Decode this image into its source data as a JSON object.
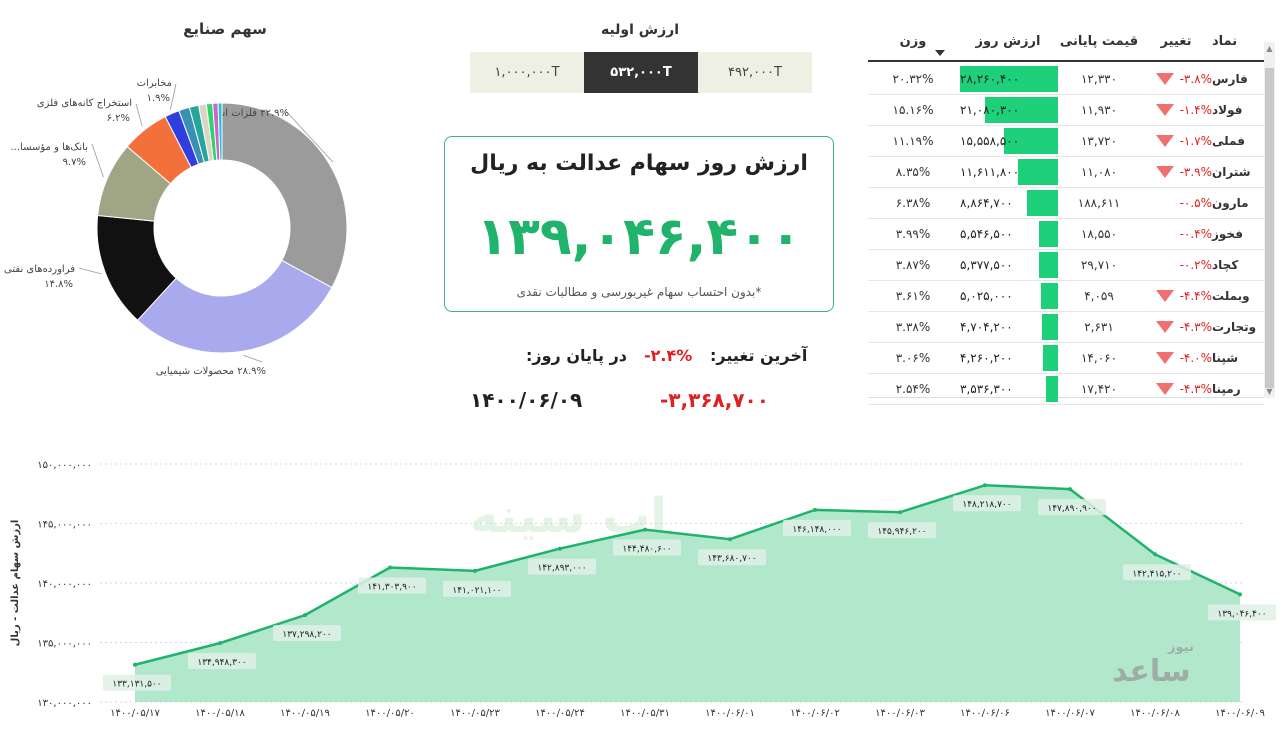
{
  "sectors": {
    "title": "سهم صنایع",
    "chart_data": {
      "type": "pie",
      "slices": [
        {
          "label": "فلزات اساسی",
          "pct_text": "۳۲.۹%",
          "value": 32.9,
          "color": "#9b9b9b"
        },
        {
          "label": "محصولات شیمیایی",
          "pct_text": "۲۸.۹%",
          "value": 28.9,
          "color": "#a9a9ee"
        },
        {
          "label": "فراورده‌های نفتی",
          "pct_text": "۱۴.۸%",
          "value": 14.8,
          "color": "#111111"
        },
        {
          "label": "...بانک‌ها و مؤسسا",
          "pct_text": "۹.۷%",
          "value": 9.7,
          "color": "#a0a585"
        },
        {
          "label": "استخراج کانه‌های فلزی",
          "pct_text": "۶.۲%",
          "value": 6.2,
          "color": "#f4703a"
        },
        {
          "label": "مخابرات",
          "pct_text": "۱.۹%",
          "value": 1.9,
          "color": "#2f3fdd"
        },
        {
          "label": "",
          "pct_text": "",
          "value": 1.4,
          "color": "#3a8fb5"
        },
        {
          "label": "",
          "pct_text": "",
          "value": 1.2,
          "color": "#26a69a"
        },
        {
          "label": "",
          "pct_text": "",
          "value": 1.0,
          "color": "#d9d6c3"
        },
        {
          "label": "",
          "pct_text": "",
          "value": 0.8,
          "color": "#2ed36c"
        },
        {
          "label": "",
          "pct_text": "",
          "value": 0.7,
          "color": "#cc66cc"
        },
        {
          "label": "",
          "pct_text": "",
          "value": 0.5,
          "color": "#23bfe0"
        }
      ]
    }
  },
  "initial_value": {
    "title": "ارزش اولیه",
    "options": [
      "۱,۰۰۰,۰۰۰T",
      "۵۳۲,۰۰۰T",
      "۴۹۲,۰۰۰T"
    ],
    "selected_index": 1
  },
  "card": {
    "title": "ارزش روز سهام عدالت به ریال",
    "value": "۱۳۹,۰۴۶,۴۰۰",
    "note": "*بدون احتساب سهام غیربورسی و مطالبات نقدی"
  },
  "last_change": {
    "label": "آخرین تغییر:",
    "pct": "-۲.۴%",
    "eod_label": "در پایان روز:",
    "amount": "-۳,۳۶۸,۷۰۰",
    "date": "۱۴۰۰/۰۶/۰۹"
  },
  "table": {
    "headers": {
      "symbol": "نماد",
      "change": "تغییر",
      "price": "قیمت پایانی",
      "value": "ارزش روز",
      "weight": "وزن"
    },
    "max_value": 28260400,
    "rows": [
      {
        "symbol": "فارس",
        "change": "-۳.۸%",
        "arrow": true,
        "price": "۱۲,۳۳۰",
        "value_text": "۲۸,۲۶۰,۴۰۰",
        "value": 28260400,
        "weight": "۲۰.۳۲%"
      },
      {
        "symbol": "فولاد",
        "change": "-۱.۴%",
        "arrow": true,
        "price": "۱۱,۹۳۰",
        "value_text": "۲۱,۰۸۰,۳۰۰",
        "value": 21080300,
        "weight": "۱۵.۱۶%"
      },
      {
        "symbol": "فملی",
        "change": "-۱.۷%",
        "arrow": true,
        "price": "۱۳,۷۲۰",
        "value_text": "۱۵,۵۵۸,۵۰۰",
        "value": 15558500,
        "weight": "۱۱.۱۹%"
      },
      {
        "symbol": "شتران",
        "change": "-۳.۹%",
        "arrow": true,
        "price": "۱۱,۰۸۰",
        "value_text": "۱۱,۶۱۱,۸۰۰",
        "value": 11611800,
        "weight": "۸.۳۵%"
      },
      {
        "symbol": "مارون",
        "change": "-۰.۵%",
        "arrow": false,
        "price": "۱۸۸,۶۱۱",
        "value_text": "۸,۸۶۴,۷۰۰",
        "value": 8864700,
        "weight": "۶.۳۸%"
      },
      {
        "symbol": "فخوز",
        "change": "-۰.۴%",
        "arrow": false,
        "price": "۱۸,۵۵۰",
        "value_text": "۵,۵۴۶,۵۰۰",
        "value": 5546500,
        "weight": "۳.۹۹%"
      },
      {
        "symbol": "کچاد",
        "change": "-۰.۲%",
        "arrow": false,
        "price": "۲۹,۷۱۰",
        "value_text": "۵,۳۷۷,۵۰۰",
        "value": 5377500,
        "weight": "۳.۸۷%"
      },
      {
        "symbol": "وبملت",
        "change": "-۴.۴%",
        "arrow": true,
        "price": "۴,۰۵۹",
        "value_text": "۵,۰۲۵,۰۰۰",
        "value": 5025000,
        "weight": "۳.۶۱%"
      },
      {
        "symbol": "وتجارت",
        "change": "-۴.۳%",
        "arrow": true,
        "price": "۲,۶۳۱",
        "value_text": "۴,۷۰۴,۲۰۰",
        "value": 4704200,
        "weight": "۳.۳۸%"
      },
      {
        "symbol": "شپنا",
        "change": "-۴.۰%",
        "arrow": true,
        "price": "۱۴,۰۶۰",
        "value_text": "۴,۲۶۰,۲۰۰",
        "value": 4260200,
        "weight": "۳.۰۶%"
      },
      {
        "symbol": "رمپنا",
        "change": "-۴.۳%",
        "arrow": true,
        "price": "۱۷,۴۲۰",
        "value_text": "۳,۵۳۶,۳۰۰",
        "value": 3536300,
        "weight": "۲.۵۴%"
      }
    ]
  },
  "history": {
    "chart_data": {
      "type": "area",
      "ylabel": "ارزش سهام عدالت - ریال",
      "ylim": [
        130000000,
        150000000
      ],
      "y_ticks": [
        130000000,
        135000000,
        140000000,
        145000000,
        150000000
      ],
      "y_tick_labels": [
        "۱۳۰,۰۰۰,۰۰۰",
        "۱۳۵,۰۰۰,۰۰۰",
        "۱۴۰,۰۰۰,۰۰۰",
        "۱۴۵,۰۰۰,۰۰۰",
        "۱۵۰,۰۰۰,۰۰۰"
      ],
      "x": [
        "۱۴۰۰/۰۵/۱۷",
        "۱۴۰۰/۰۵/۱۸",
        "۱۴۰۰/۰۵/۱۹",
        "۱۴۰۰/۰۵/۲۰",
        "۱۴۰۰/۰۵/۲۳",
        "۱۴۰۰/۰۵/۲۴",
        "۱۴۰۰/۰۵/۳۱",
        "۱۴۰۰/۰۶/۰۱",
        "۱۴۰۰/۰۶/۰۲",
        "۱۴۰۰/۰۶/۰۳",
        "۱۴۰۰/۰۶/۰۶",
        "۱۴۰۰/۰۶/۰۷",
        "۱۴۰۰/۰۶/۰۸",
        "۱۴۰۰/۰۶/۰۹"
      ],
      "values": [
        133131500,
        134948300,
        137298200,
        141303900,
        141021100,
        142893000,
        144480600,
        143680700,
        146148000,
        145946200,
        148218700,
        147890900,
        142415200,
        139046400
      ],
      "value_labels": [
        "۱۳۳,۱۳۱,۵۰۰",
        "۱۳۴,۹۴۸,۳۰۰",
        "۱۳۷,۲۹۸,۲۰۰",
        "۱۴۱,۳۰۳,۹۰۰",
        "۱۴۱,۰۲۱,۱۰۰",
        "۱۴۲,۸۹۳,۰۰۰",
        "۱۴۴,۴۸۰,۶۰۰",
        "۱۴۳,۶۸۰,۷۰۰",
        "۱۴۶,۱۴۸,۰۰۰",
        "۱۴۵,۹۴۶,۲۰۰",
        "۱۴۸,۲۱۸,۷۰۰",
        "۱۴۷,۸۹۰,۹۰۰",
        "۱۴۲,۴۱۵,۲۰۰",
        "۱۳۹,۰۴۶,۴۰۰"
      ],
      "line_color": "#1fb36b",
      "fill_color": "#a8e6c6"
    }
  },
  "branding": {
    "logo": "نیوز",
    "site": "ساعد"
  }
}
